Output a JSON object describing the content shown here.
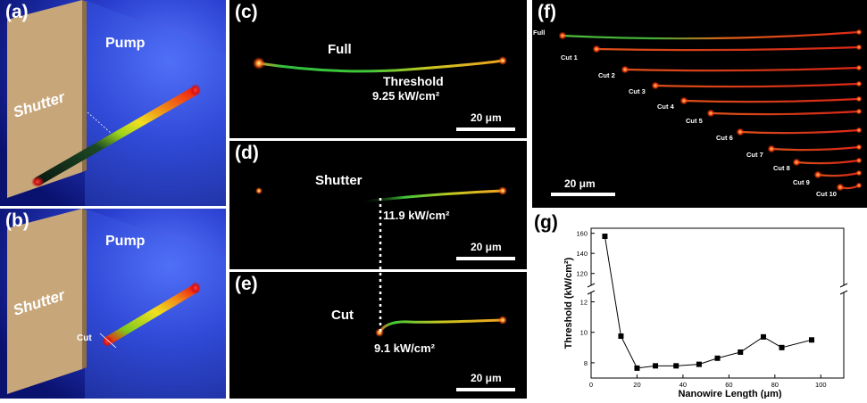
{
  "panel_a": {
    "label": "(a)",
    "pump": "Pump",
    "shutter": "Shutter"
  },
  "panel_b": {
    "label": "(b)",
    "pump": "Pump",
    "shutter": "Shutter",
    "cut": "Cut"
  },
  "panel_c": {
    "label": "(c)",
    "full": "Full",
    "threshold_title": "Threshold",
    "threshold_value": "9.25 kW/cm²",
    "scale": "20 μm"
  },
  "panel_d": {
    "label": "(d)",
    "shutter": "Shutter",
    "threshold_value": "11.9 kW/cm²",
    "scale": "20 μm"
  },
  "panel_e": {
    "label": "(e)",
    "cut": "Cut",
    "threshold_value": "9.1 kW/cm²",
    "scale": "20 μm"
  },
  "panel_f": {
    "label": "(f)",
    "scale": "20 μm",
    "wire_labels": [
      "Full",
      "Cut 1",
      "Cut 2",
      "Cut 3",
      "Cut 4",
      "Cut 5",
      "Cut 6",
      "Cut 7",
      "Cut 8",
      "Cut 9",
      "Cut 10"
    ]
  },
  "panel_g": {
    "label": "(g)"
  },
  "chart_data": {
    "type": "line",
    "xlabel": "Nanowire Length (μm)",
    "ylabel": "Threshold (kW/cm²)",
    "xlim": [
      0,
      110
    ],
    "x_ticks": [
      0,
      20,
      40,
      60,
      80,
      100
    ],
    "y_ticks_lower": [
      8,
      10,
      12
    ],
    "y_ticks_upper": [
      120,
      140,
      160
    ],
    "broken_y_axis": true,
    "series": [
      {
        "x": [
          6,
          13,
          20,
          28,
          37,
          47,
          55,
          65,
          75,
          83,
          96
        ],
        "y": [
          157,
          9.75,
          7.65,
          7.8,
          7.8,
          7.9,
          8.3,
          8.7,
          9.7,
          9.0,
          9.5
        ]
      }
    ],
    "colors": {
      "line": "#000000",
      "marker": "#000000"
    }
  }
}
